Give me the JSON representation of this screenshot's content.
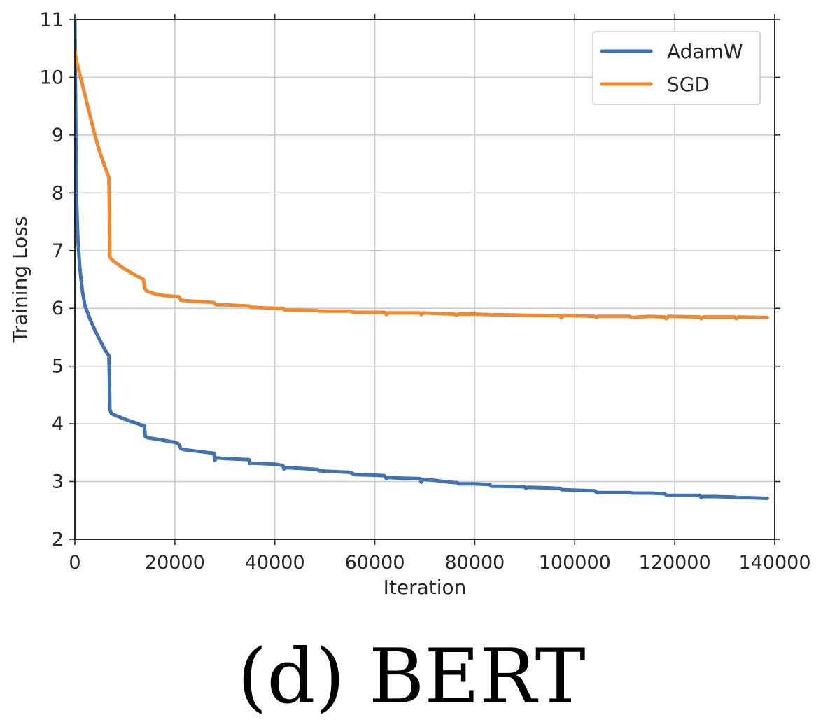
{
  "caption": "(d) BERT",
  "chart_data": {
    "type": "line",
    "title": "",
    "xlabel": "Iteration",
    "ylabel": "Training Loss",
    "xlim": [
      0,
      140000
    ],
    "ylim": [
      2,
      11
    ],
    "xticks": [
      0,
      20000,
      40000,
      60000,
      80000,
      100000,
      120000,
      140000
    ],
    "yticks": [
      2,
      3,
      4,
      5,
      6,
      7,
      8,
      9,
      10,
      11
    ],
    "grid": true,
    "legend_position": "top-right",
    "series": [
      {
        "name": "AdamW",
        "color": "#4272b0",
        "x": [
          0,
          300,
          600,
          1000,
          1500,
          2000,
          3000,
          4000,
          5000,
          6000,
          6800,
          6900,
          7000,
          7300,
          8000,
          10000,
          12000,
          13900,
          14100,
          14500,
          16000,
          18000,
          20000,
          20800,
          21200,
          22000,
          25000,
          27800,
          28000,
          28300,
          30000,
          34800,
          35000,
          35300,
          40000,
          41600,
          41800,
          42200,
          45000,
          48500,
          48800,
          50000,
          55000,
          55500,
          56000,
          60000,
          62000,
          62300,
          62600,
          65000,
          69000,
          69300,
          69600,
          72000,
          75000,
          76500,
          76800,
          80000,
          83000,
          83300,
          85000,
          90000,
          90200,
          90600,
          95000,
          97000,
          97400,
          100000,
          104000,
          104400,
          110000,
          111000,
          111400,
          115000,
          118000,
          118400,
          122000,
          125000,
          125300,
          125600,
          128000,
          132000,
          132400,
          135000,
          138500
        ],
        "values": [
          11,
          8.0,
          7.2,
          6.7,
          6.3,
          6.05,
          5.82,
          5.62,
          5.45,
          5.28,
          5.18,
          4.8,
          4.25,
          4.18,
          4.15,
          4.08,
          4.02,
          3.96,
          3.78,
          3.76,
          3.74,
          3.71,
          3.68,
          3.65,
          3.57,
          3.55,
          3.52,
          3.49,
          3.37,
          3.41,
          3.4,
          3.38,
          3.31,
          3.32,
          3.3,
          3.28,
          3.22,
          3.24,
          3.23,
          3.21,
          3.19,
          3.18,
          3.16,
          3.14,
          3.12,
          3.11,
          3.1,
          3.05,
          3.07,
          3.06,
          3.05,
          2.99,
          3.04,
          3.02,
          2.99,
          2.98,
          2.96,
          2.96,
          2.95,
          2.92,
          2.92,
          2.91,
          2.88,
          2.9,
          2.89,
          2.88,
          2.86,
          2.85,
          2.84,
          2.81,
          2.81,
          2.81,
          2.8,
          2.8,
          2.79,
          2.76,
          2.76,
          2.76,
          2.72,
          2.74,
          2.74,
          2.73,
          2.72,
          2.72,
          2.71
        ]
      },
      {
        "name": "SGD",
        "color": "#ef8a33",
        "x": [
          0,
          300,
          1000,
          2000,
          3000,
          4000,
          5000,
          6000,
          6800,
          6900,
          7000,
          7300,
          8000,
          10000,
          12000,
          13700,
          14000,
          14300,
          16000,
          18000,
          20800,
          21200,
          24000,
          27800,
          28200,
          30000,
          34800,
          35200,
          40000,
          41600,
          42000,
          42400,
          45000,
          48500,
          48900,
          55000,
          55500,
          56000,
          60000,
          62000,
          62300,
          62600,
          65000,
          69000,
          69300,
          69600,
          72000,
          76000,
          76300,
          76700,
          80000,
          83000,
          83300,
          83700,
          90000,
          97000,
          97300,
          97700,
          100000,
          104000,
          104300,
          104700,
          110000,
          111000,
          111300,
          115000,
          118000,
          118300,
          118700,
          125000,
          125300,
          125700,
          132000,
          132300,
          132700,
          138500
        ],
        "values": [
          10.45,
          10.3,
          10.05,
          9.7,
          9.35,
          9.0,
          8.7,
          8.45,
          8.27,
          7.6,
          6.9,
          6.85,
          6.8,
          6.68,
          6.58,
          6.5,
          6.35,
          6.3,
          6.25,
          6.22,
          6.2,
          6.14,
          6.12,
          6.1,
          6.06,
          6.06,
          6.04,
          6.02,
          6.0,
          6.0,
          5.97,
          5.97,
          5.97,
          5.96,
          5.95,
          5.95,
          5.94,
          5.93,
          5.93,
          5.93,
          5.89,
          5.92,
          5.92,
          5.92,
          5.89,
          5.92,
          5.91,
          5.9,
          5.88,
          5.9,
          5.9,
          5.89,
          5.88,
          5.89,
          5.88,
          5.87,
          5.83,
          5.88,
          5.87,
          5.86,
          5.84,
          5.86,
          5.86,
          5.86,
          5.84,
          5.86,
          5.85,
          5.82,
          5.86,
          5.85,
          5.82,
          5.85,
          5.85,
          5.82,
          5.85,
          5.84
        ]
      }
    ]
  }
}
